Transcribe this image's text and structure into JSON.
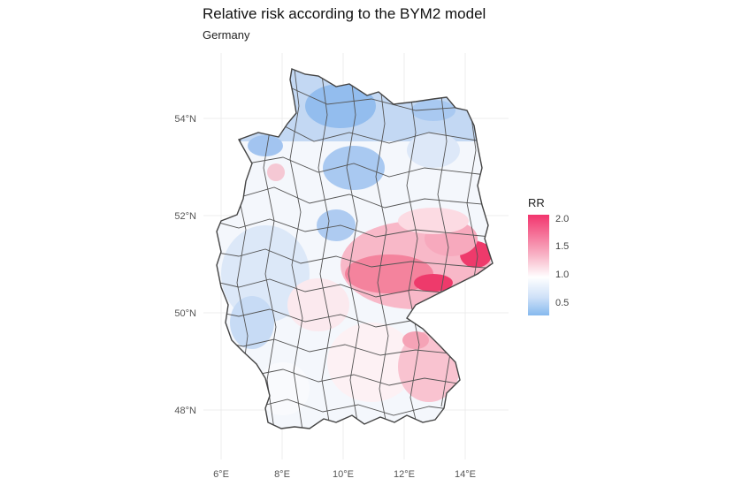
{
  "title": "Relative risk according to the BYM2 model",
  "subtitle": "Germany",
  "axes": {
    "lat_labels": [
      "54°N",
      "52°N",
      "50°N",
      "48°N"
    ],
    "lon_labels": [
      "6°E",
      "8°E",
      "10°E",
      "12°E",
      "14°E"
    ]
  },
  "legend": {
    "title": "RR",
    "ticks": [
      "2.0",
      "1.5",
      "1.0",
      "0.5"
    ],
    "colors": {
      "high": "#f2356d",
      "mid": "#ffffff",
      "low": "#86b9ee"
    }
  }
}
